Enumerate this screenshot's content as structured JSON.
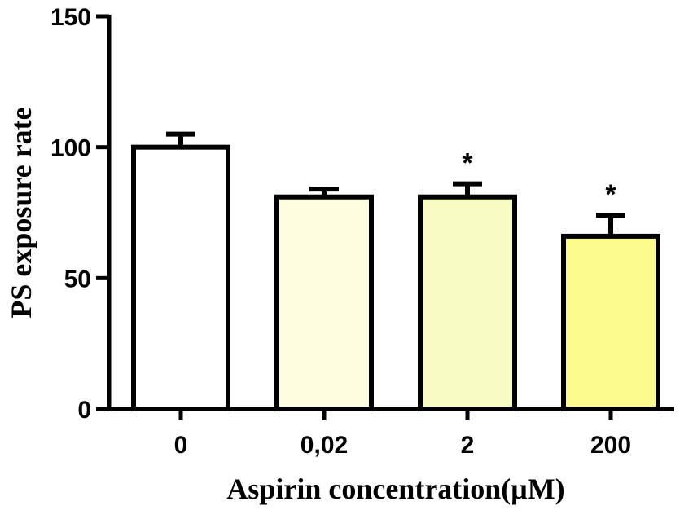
{
  "chart_data": {
    "type": "bar",
    "categories": [
      "0",
      "0,02",
      "2",
      "200"
    ],
    "values": [
      100,
      81,
      81,
      66
    ],
    "errors": [
      5,
      3,
      5,
      8
    ],
    "significance": [
      "",
      "",
      "*",
      "*"
    ],
    "colors": [
      "#ffffff",
      "#fdfde0",
      "#f6fcc2",
      "#fbfb8e"
    ],
    "xlabel": "Aspirin concentration(μM)",
    "ylabel": "PS exposure rate",
    "ylim": [
      0,
      150
    ],
    "yticks": [
      0,
      50,
      100,
      150
    ],
    "grid": false,
    "legend": "none"
  }
}
